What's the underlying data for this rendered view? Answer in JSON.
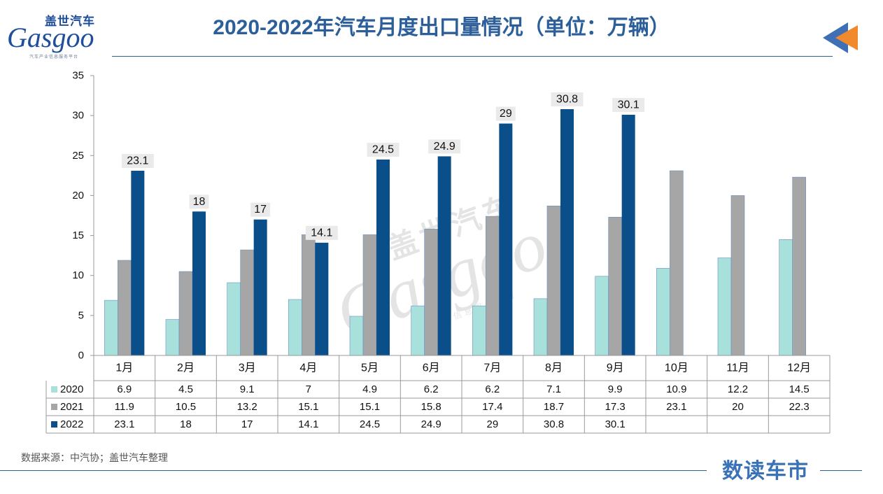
{
  "header": {
    "title": "2020-2022年汽车月度出口量情况（单位：万辆）",
    "logo_cn": "盖世汽车",
    "logo_en": "Gasgoo",
    "logo_sub": "汽车产业信息服务平台"
  },
  "footer": {
    "source": "数据来源：中汽协；盖世汽车整理",
    "brand": "数读车市"
  },
  "colors": {
    "2020": "#a8e0dc",
    "2021": "#a6a6a6",
    "2022": "#0b4f8a",
    "title": "#2c5f9a",
    "arrow_orange": "#f08a2c",
    "arrow_blue": "#3f6fb5"
  },
  "chart_data": {
    "type": "bar",
    "categories": [
      "1月",
      "2月",
      "3月",
      "4月",
      "5月",
      "6月",
      "7月",
      "8月",
      "9月",
      "10月",
      "11月",
      "12月"
    ],
    "series": [
      {
        "name": "2020",
        "values": [
          6.9,
          4.5,
          9.1,
          7,
          4.9,
          6.2,
          6.2,
          7.1,
          9.9,
          10.9,
          12.2,
          14.5
        ]
      },
      {
        "name": "2021",
        "values": [
          11.9,
          10.5,
          13.2,
          15.1,
          15.1,
          15.8,
          17.4,
          18.7,
          17.3,
          23.1,
          20,
          22.3
        ]
      },
      {
        "name": "2022",
        "values": [
          23.1,
          18,
          17,
          14.1,
          24.5,
          24.9,
          29,
          30.8,
          30.1,
          null,
          null,
          null
        ]
      }
    ],
    "yticks": [
      0,
      5,
      10,
      15,
      20,
      25,
      30,
      35
    ],
    "ylim": [
      0,
      35
    ],
    "data_labels_series": "2022",
    "grid": false,
    "legend": "data-table-below"
  }
}
